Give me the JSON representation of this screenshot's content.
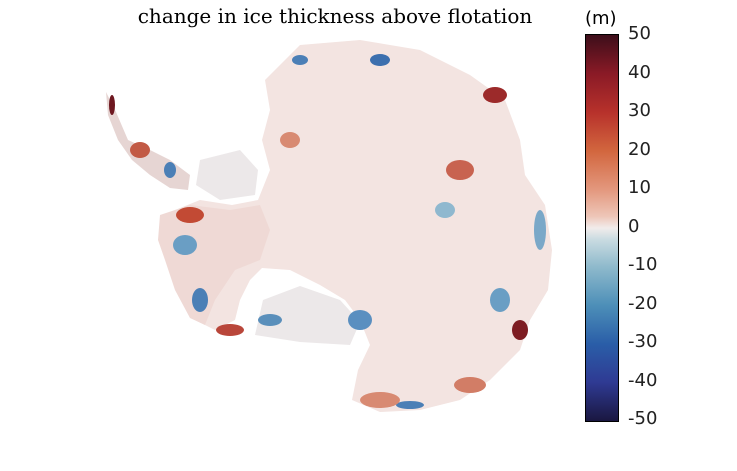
{
  "title": "change in ice thickness above flotation",
  "colorbar": {
    "unit": "(m)",
    "ticks": [
      "50",
      "40",
      "30",
      "20",
      "10",
      "0",
      "-10",
      "-20",
      "-30",
      "-40",
      "-50"
    ],
    "min": -50,
    "max": 50
  },
  "colors": {
    "positive_strong": "#3d0e1a",
    "positive": "#c24a34",
    "neutral": "#f1e9e7",
    "negative": "#2d6aae",
    "negative_strong": "#1a1740"
  }
}
